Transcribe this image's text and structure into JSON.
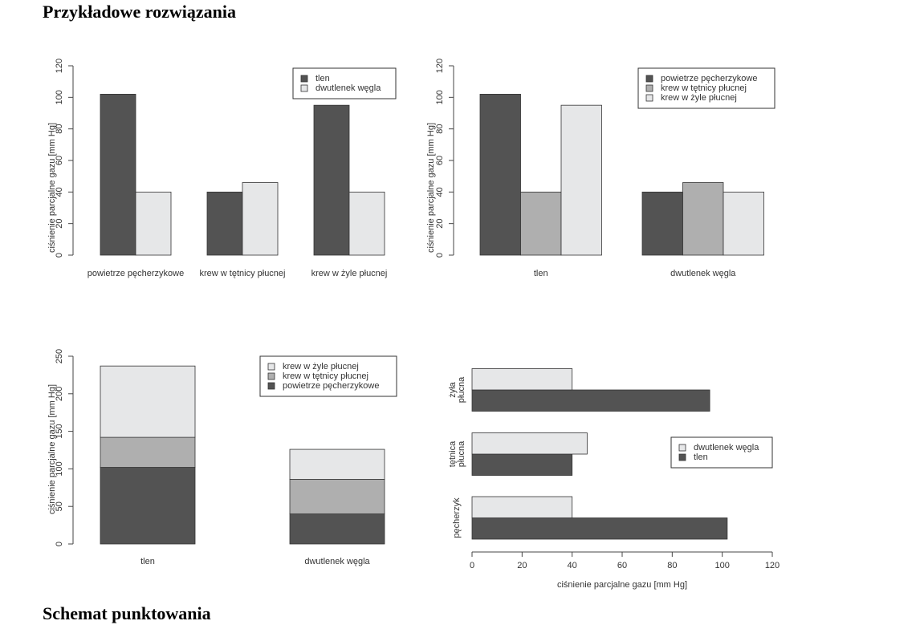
{
  "page": {
    "heading_top": "Przykładowe rozwiązania",
    "heading_bottom": "Schemat punktowania"
  },
  "colors": {
    "dark": "#535353",
    "mid": "#afafaf",
    "light": "#e6e7e8",
    "stroke": "#333333",
    "axis": "#444444"
  },
  "chart_data": [
    {
      "type": "bar",
      "mode": "grouped",
      "categories": [
        "powietrze pęcherzykowe",
        "krew w tętnicy płucnej",
        "krew w żyle płucnej"
      ],
      "series": [
        {
          "name": "tlen",
          "values": [
            102,
            40,
            95
          ],
          "color": "#535353"
        },
        {
          "name": "dwutlenek węgla",
          "values": [
            40,
            46,
            40
          ],
          "color": "#e6e7e8"
        }
      ],
      "ylabel": "ciśnienie parcjalne gazu [mm Hg]",
      "ylim": [
        0,
        120
      ],
      "yticks": [
        0,
        20,
        40,
        60,
        80,
        100,
        120
      ],
      "legend": "top-right"
    },
    {
      "type": "bar",
      "mode": "grouped",
      "categories": [
        "tlen",
        "dwutlenek węgla"
      ],
      "series": [
        {
          "name": "powietrze pęcherzykowe",
          "values": [
            102,
            40
          ],
          "color": "#535353"
        },
        {
          "name": "krew w tętnicy płucnej",
          "values": [
            40,
            46
          ],
          "color": "#afafaf"
        },
        {
          "name": "krew w żyle płucnej",
          "values": [
            95,
            40
          ],
          "color": "#e6e7e8"
        }
      ],
      "ylabel": "ciśnienie parcjalne gazu [mm Hg]",
      "ylim": [
        0,
        120
      ],
      "yticks": [
        0,
        20,
        40,
        60,
        80,
        100,
        120
      ],
      "legend": "top-right"
    },
    {
      "type": "bar",
      "mode": "stacked",
      "categories": [
        "tlen",
        "dwutlenek węgla"
      ],
      "series": [
        {
          "name": "powietrze pęcherzykowe",
          "values": [
            102,
            40
          ],
          "color": "#535353"
        },
        {
          "name": "krew w tętnicy płucnej",
          "values": [
            40,
            46
          ],
          "color": "#afafaf"
        },
        {
          "name": "krew w żyle płucnej",
          "values": [
            95,
            40
          ],
          "color": "#e6e7e8"
        }
      ],
      "legend_order": [
        "krew w żyle płucnej",
        "krew w tętnicy płucnej",
        "powietrze pęcherzykowe"
      ],
      "ylabel": "ciśnienie parcjalne gazu [mm Hg]",
      "ylim": [
        0,
        250
      ],
      "yticks": [
        0,
        50,
        100,
        150,
        200,
        250
      ],
      "legend": "top-right"
    },
    {
      "type": "bar",
      "mode": "grouped-horizontal",
      "categories": [
        "pęcherzyk",
        "tętnica płucna",
        "żyła płucna"
      ],
      "category_lines": [
        [
          "pęcherzyk"
        ],
        [
          "tętnica",
          "płucna"
        ],
        [
          "żyła",
          "płucna"
        ]
      ],
      "series": [
        {
          "name": "tlen",
          "values": [
            102,
            40,
            95
          ],
          "color": "#535353"
        },
        {
          "name": "dwutlenek węgla",
          "values": [
            40,
            46,
            40
          ],
          "color": "#e6e7e8"
        }
      ],
      "legend_order": [
        "dwutlenek węgla",
        "tlen"
      ],
      "xlabel": "ciśnienie parcjalne gazu [mm Hg]",
      "xlim": [
        0,
        120
      ],
      "xticks": [
        0,
        20,
        40,
        60,
        80,
        100,
        120
      ],
      "legend": "right"
    }
  ]
}
